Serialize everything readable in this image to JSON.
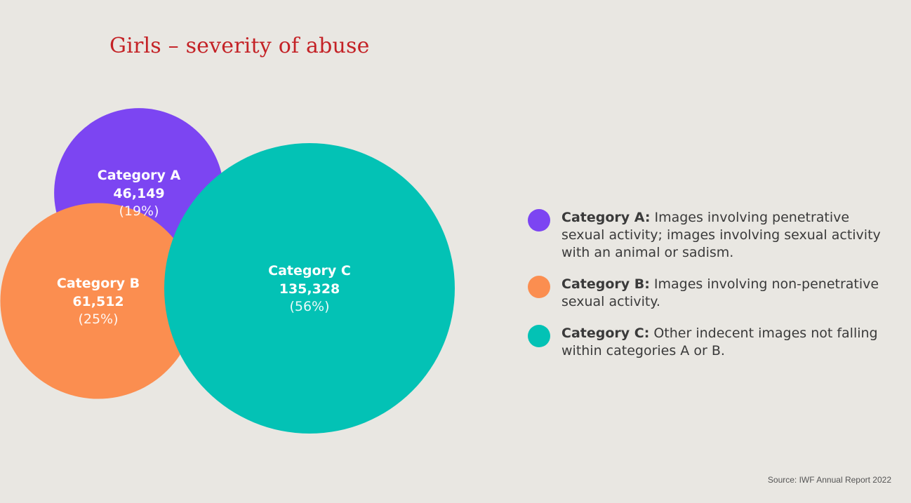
{
  "chart_data": {
    "type": "bubble",
    "title": "Girls – severity of abuse",
    "series": [
      {
        "name": "Category A",
        "value": 46149,
        "value_label": "46,149",
        "percent_label": "(19%)",
        "color": "#7c45f2"
      },
      {
        "name": "Category B",
        "value": 61512,
        "value_label": "61,512",
        "percent_label": "(25%)",
        "color": "#fb8e50"
      },
      {
        "name": "Category C",
        "value": 135328,
        "value_label": "135,328",
        "percent_label": "(56%)",
        "color": "#03c2b5"
      }
    ],
    "legend_placement": "right"
  },
  "legend": [
    {
      "term": "Category A:",
      "text": " Images involving penetrative sexual activity; images involving sexual activity with an animal or sadism."
    },
    {
      "term": "Category B:",
      "text": " Images involving non-penetrative sexual activity."
    },
    {
      "term": "Category C:",
      "text": " Other indecent images not falling within categories A or B."
    }
  ],
  "source": "Source: IWF Annual Report 2022"
}
